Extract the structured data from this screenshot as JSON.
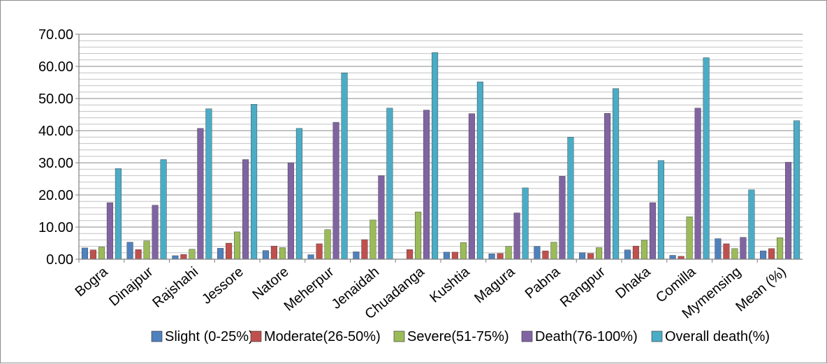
{
  "chart_data": {
    "type": "bar",
    "categories": [
      "Bogra",
      "Dinajpur",
      "Rajshahi",
      "Jessore",
      "Natore",
      "Meherpur",
      "Jenaidah",
      "Chuadanga",
      "Kushtia",
      "Magura",
      "Pabna",
      "Rangpur",
      "Dhaka",
      "Comilla",
      "Mymensing",
      "Mean (%)"
    ],
    "series": [
      {
        "name": "Slight (0-25%)",
        "color": "#4f81bd",
        "values": [
          3.5,
          5.3,
          1.1,
          3.4,
          2.7,
          1.4,
          2.3,
          0.0,
          2.2,
          1.7,
          4.0,
          2.0,
          2.9,
          1.2,
          6.4,
          2.6
        ]
      },
      {
        "name": "Moderate(26-50%)",
        "color": "#c0504d",
        "values": [
          2.9,
          3.0,
          1.5,
          5.0,
          4.1,
          4.8,
          6.1,
          3.0,
          2.2,
          1.8,
          2.6,
          1.8,
          4.1,
          0.9,
          4.8,
          3.3
        ]
      },
      {
        "name": "Severe(51-75%)",
        "color": "#9bbb59",
        "values": [
          3.8,
          5.7,
          3.1,
          8.5,
          3.6,
          9.2,
          12.2,
          14.7,
          5.2,
          4.0,
          5.3,
          3.6,
          5.9,
          13.2,
          3.3,
          6.7
        ]
      },
      {
        "name": "Death(76-100%)",
        "color": "#8064a2",
        "values": [
          17.6,
          16.8,
          40.7,
          31.0,
          30.0,
          42.6,
          26.0,
          46.4,
          45.3,
          14.4,
          25.8,
          45.4,
          17.6,
          47.0,
          6.8,
          30.2
        ]
      },
      {
        "name": "Overall death(%)",
        "color": "#4bacc6",
        "values": [
          28.2,
          31.0,
          46.8,
          48.2,
          40.7,
          58.0,
          47.0,
          64.3,
          55.2,
          22.2,
          38.0,
          53.1,
          30.7,
          62.7,
          21.6,
          43.1
        ]
      }
    ],
    "yticks": [
      "0.00",
      "10.00",
      "20.00",
      "30.00",
      "40.00",
      "50.00",
      "60.00",
      "70.00"
    ],
    "ylim": [
      0,
      70
    ],
    "minor_grid_step": 2,
    "grid": true,
    "legend_position": "bottom"
  }
}
